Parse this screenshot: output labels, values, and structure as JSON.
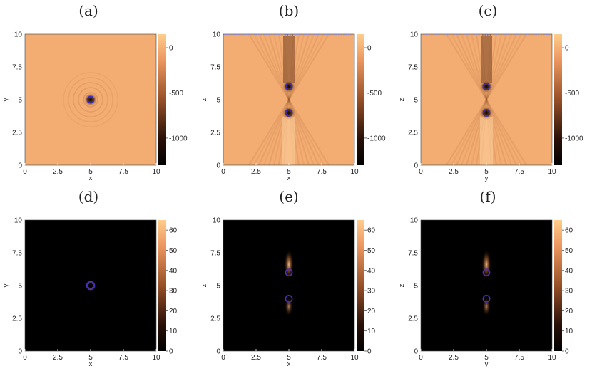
{
  "figure": {
    "panels": [
      "(a)",
      "(b)",
      "(c)",
      "(d)",
      "(e)",
      "(f)"
    ]
  },
  "chart_data": [
    {
      "type": "heatmap",
      "panel": "(a)",
      "xlabel": "x",
      "ylabel": "y",
      "xlim": [
        0,
        10
      ],
      "ylim": [
        0,
        10
      ],
      "xticks": [
        "0",
        "2.5",
        "5",
        "7.5",
        "10"
      ],
      "yticks": [
        "0",
        "2.5",
        "5",
        "7.5",
        "10"
      ],
      "colorbar": {
        "ticks": [
          "0",
          "-500",
          "-1000"
        ],
        "range": [
          -1300,
          150
        ],
        "colormap": "copper"
      },
      "features": [
        {
          "kind": "ring",
          "x": 5,
          "y": 5,
          "r": 0.25,
          "color": "#3a2bd6"
        }
      ]
    },
    {
      "type": "heatmap",
      "panel": "(b)",
      "xlabel": "x",
      "ylabel": "z",
      "xlim": [
        0,
        10
      ],
      "ylim": [
        0,
        10
      ],
      "xticks": [
        "0",
        "2.5",
        "5",
        "7.5",
        "10"
      ],
      "yticks": [
        "0",
        "2.5",
        "5",
        "7.5",
        "10"
      ],
      "colorbar": {
        "ticks": [
          "0",
          "-500",
          "-1000"
        ],
        "range": [
          -1300,
          150
        ],
        "colormap": "copper"
      },
      "features": [
        {
          "kind": "ring",
          "x": 5,
          "y": 6,
          "r": 0.25,
          "color": "#3a2bd6"
        },
        {
          "kind": "ring",
          "x": 5,
          "y": 4,
          "r": 0.25,
          "color": "#3a2bd6"
        }
      ]
    },
    {
      "type": "heatmap",
      "panel": "(c)",
      "xlabel": "y",
      "ylabel": "z",
      "xlim": [
        0,
        10
      ],
      "ylim": [
        0,
        10
      ],
      "xticks": [
        "0",
        "2.5",
        "5",
        "7.5",
        "10"
      ],
      "yticks": [
        "0",
        "2.5",
        "5",
        "7.5",
        "10"
      ],
      "colorbar": {
        "ticks": [
          "0",
          "-500",
          "-1000"
        ],
        "range": [
          -1300,
          150
        ],
        "colormap": "copper"
      },
      "features": [
        {
          "kind": "ring",
          "x": 5,
          "y": 6,
          "r": 0.25,
          "color": "#3a2bd6"
        },
        {
          "kind": "ring",
          "x": 5,
          "y": 4,
          "r": 0.25,
          "color": "#3a2bd6"
        }
      ]
    },
    {
      "type": "heatmap",
      "panel": "(d)",
      "xlabel": "x",
      "ylabel": "y",
      "xlim": [
        0,
        10
      ],
      "ylim": [
        0,
        10
      ],
      "xticks": [
        "0",
        "2.5",
        "5",
        "7.5",
        "10"
      ],
      "yticks": [
        "0",
        "2.5",
        "5",
        "7.5",
        "10"
      ],
      "colorbar": {
        "ticks": [
          "60",
          "50",
          "40",
          "30",
          "20",
          "10",
          "0"
        ],
        "range": [
          0,
          65
        ],
        "colormap": "copper"
      },
      "features": [
        {
          "kind": "ring",
          "x": 5,
          "y": 5,
          "r": 0.3,
          "color": "#4a2fc0"
        }
      ]
    },
    {
      "type": "heatmap",
      "panel": "(e)",
      "xlabel": "x",
      "ylabel": "z",
      "xlim": [
        0,
        10
      ],
      "ylim": [
        0,
        10
      ],
      "xticks": [
        "0",
        "2.5",
        "5",
        "7.5",
        "10"
      ],
      "yticks": [
        "0",
        "2.5",
        "5",
        "7.5",
        "10"
      ],
      "colorbar": {
        "ticks": [
          "60",
          "50",
          "40",
          "30",
          "20",
          "10",
          "0"
        ],
        "range": [
          0,
          65
        ],
        "colormap": "copper"
      },
      "features": [
        {
          "kind": "ring",
          "x": 5,
          "y": 6,
          "r": 0.25,
          "color": "#4a2fc0"
        },
        {
          "kind": "ring",
          "x": 5,
          "y": 4,
          "r": 0.25,
          "color": "#4a2fc0"
        }
      ]
    },
    {
      "type": "heatmap",
      "panel": "(f)",
      "xlabel": "y",
      "ylabel": "z",
      "xlim": [
        0,
        10
      ],
      "ylim": [
        0,
        10
      ],
      "xticks": [
        "0",
        "2.5",
        "5",
        "7.5",
        "10"
      ],
      "yticks": [
        "0",
        "2.5",
        "5",
        "7.5",
        "10"
      ],
      "colorbar": {
        "ticks": [
          "60",
          "50",
          "40",
          "30",
          "20",
          "10",
          "0"
        ],
        "range": [
          0,
          65
        ],
        "colormap": "copper"
      },
      "features": [
        {
          "kind": "ring",
          "x": 5,
          "y": 6,
          "r": 0.25,
          "color": "#4a2fc0"
        },
        {
          "kind": "ring",
          "x": 5,
          "y": 4,
          "r": 0.25,
          "color": "#4a2fc0"
        }
      ]
    }
  ]
}
